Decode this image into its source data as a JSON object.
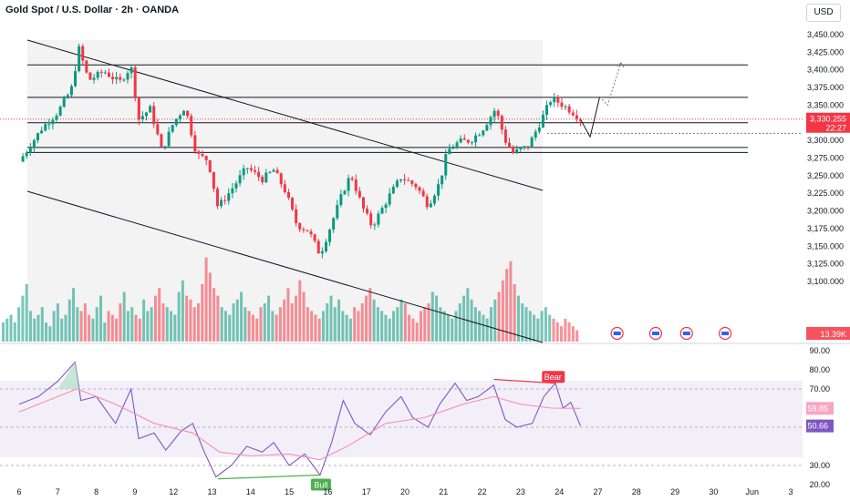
{
  "header": {
    "title": "Gold Spot / U.S. Dollar · 2h · OANDA",
    "currency": "USD"
  },
  "colors": {
    "up": "#089981",
    "down": "#f23645",
    "rsi_line": "#7e57c2",
    "rsi_ma": "#f48fb1",
    "last_price": "#f23645",
    "bull": "#4caf50",
    "bear": "#f23645"
  },
  "chart_data": [
    {
      "type": "candlestick",
      "title": "Gold Spot / U.S. Dollar · 2h · OANDA",
      "xlabel": "",
      "ylabel": "USD",
      "ylim": [
        3125,
        3462
      ],
      "x_ticks": [
        "6",
        "7",
        "8",
        "9",
        "12",
        "13",
        "14",
        "15",
        "16",
        "17",
        "20",
        "21",
        "22",
        "23",
        "24",
        "27",
        "28",
        "29",
        "30",
        "Jun",
        "3"
      ],
      "y_ticks": [
        "3,450.000",
        "3,425.000",
        "3,400.000",
        "3,375.000",
        "3,350.000",
        "3,325.000",
        "3,300.000",
        "3,275.000",
        "3,250.000",
        "3,225.000",
        "3,200.000",
        "3,175.000",
        "3,150.000",
        "3,125.000",
        "3,100.000"
      ],
      "anchors": [
        {
          "x": 0,
          "y": 3270
        },
        {
          "x": 0.6,
          "y": 3318
        },
        {
          "x": 1.0,
          "y": 3340
        },
        {
          "x": 1.35,
          "y": 3372
        },
        {
          "x": 1.55,
          "y": 3430
        },
        {
          "x": 1.8,
          "y": 3385
        },
        {
          "x": 2.2,
          "y": 3398
        },
        {
          "x": 2.6,
          "y": 3382
        },
        {
          "x": 2.9,
          "y": 3405
        },
        {
          "x": 3.1,
          "y": 3330
        },
        {
          "x": 3.4,
          "y": 3345
        },
        {
          "x": 3.7,
          "y": 3285
        },
        {
          "x": 4.0,
          "y": 3325
        },
        {
          "x": 4.3,
          "y": 3348
        },
        {
          "x": 4.6,
          "y": 3280
        },
        {
          "x": 4.9,
          "y": 3272
        },
        {
          "x": 5.15,
          "y": 3205
        },
        {
          "x": 5.5,
          "y": 3230
        },
        {
          "x": 5.9,
          "y": 3262
        },
        {
          "x": 6.3,
          "y": 3245
        },
        {
          "x": 6.6,
          "y": 3258
        },
        {
          "x": 6.9,
          "y": 3228
        },
        {
          "x": 7.2,
          "y": 3180
        },
        {
          "x": 7.5,
          "y": 3172
        },
        {
          "x": 7.8,
          "y": 3138
        },
        {
          "x": 8.05,
          "y": 3175
        },
        {
          "x": 8.4,
          "y": 3228
        },
        {
          "x": 8.6,
          "y": 3252
        },
        {
          "x": 8.9,
          "y": 3205
        },
        {
          "x": 9.15,
          "y": 3178
        },
        {
          "x": 9.6,
          "y": 3222
        },
        {
          "x": 9.9,
          "y": 3248
        },
        {
          "x": 10.3,
          "y": 3235
        },
        {
          "x": 10.6,
          "y": 3208
        },
        {
          "x": 10.9,
          "y": 3240
        },
        {
          "x": 11.1,
          "y": 3285
        },
        {
          "x": 11.4,
          "y": 3298
        },
        {
          "x": 11.7,
          "y": 3300
        },
        {
          "x": 12.0,
          "y": 3315
        },
        {
          "x": 12.35,
          "y": 3345
        },
        {
          "x": 12.6,
          "y": 3300
        },
        {
          "x": 12.8,
          "y": 3282
        },
        {
          "x": 13.2,
          "y": 3292
        },
        {
          "x": 13.5,
          "y": 3325
        },
        {
          "x": 13.8,
          "y": 3360
        },
        {
          "x": 14.1,
          "y": 3350
        },
        {
          "x": 14.4,
          "y": 3338
        },
        {
          "x": 14.55,
          "y": 3330.255
        }
      ],
      "volume": {
        "label": "13.39K",
        "values": [
          5,
          6,
          7,
          5,
          9,
          12,
          15,
          8,
          6,
          7,
          9,
          5,
          4,
          8,
          10,
          6,
          7,
          11,
          14,
          9,
          8,
          10,
          7,
          6,
          9,
          12,
          5,
          8,
          7,
          6,
          10,
          13,
          8,
          9,
          7,
          6,
          11,
          8,
          9,
          12,
          14,
          10,
          9,
          8,
          7,
          13,
          16,
          12,
          11,
          9,
          10,
          15,
          22,
          18,
          14,
          12,
          9,
          8,
          7,
          10,
          11,
          13,
          9,
          8,
          7,
          6,
          9,
          10,
          12,
          8,
          7,
          9,
          11,
          14,
          10,
          12,
          16,
          13,
          9,
          8,
          7,
          6,
          8,
          10,
          12,
          9,
          11,
          8,
          7,
          6,
          9,
          8,
          10,
          12,
          14,
          11,
          9,
          8,
          7,
          6,
          8,
          9,
          11,
          10,
          7,
          6,
          5,
          8,
          9,
          10,
          13,
          12,
          9,
          8,
          7,
          6,
          8,
          10,
          12,
          14,
          11,
          9,
          8,
          7,
          6,
          9,
          11,
          13,
          16,
          19,
          21,
          15,
          12,
          10,
          9,
          8,
          7,
          6,
          8,
          9,
          7,
          6,
          5,
          4,
          6,
          5,
          4,
          3
        ]
      },
      "levels": [
        3407,
        3361,
        3325,
        3290,
        3283
      ],
      "dotted_level": 3310,
      "last_price": {
        "value": "3,330.255",
        "countdown": "22:27"
      },
      "projection": [
        {
          "x": 14.55,
          "y": 3330
        },
        {
          "x": 14.8,
          "y": 3305
        },
        {
          "x": 15.05,
          "y": 3362
        },
        {
          "x": 15.25,
          "y": 3350
        },
        {
          "x": 15.6,
          "y": 3410
        }
      ],
      "events": [
        15.5,
        16.5,
        17.3,
        18.3
      ]
    },
    {
      "type": "line",
      "title": "",
      "ylim": [
        20,
        90
      ],
      "y_ticks": [
        "90.00",
        "80.00",
        "70.00",
        "30.00",
        "20.00"
      ],
      "rsi": [
        {
          "x": 0,
          "y": 62
        },
        {
          "x": 0.5,
          "y": 66
        },
        {
          "x": 1.0,
          "y": 74
        },
        {
          "x": 1.45,
          "y": 84
        },
        {
          "x": 1.6,
          "y": 64
        },
        {
          "x": 2.0,
          "y": 66
        },
        {
          "x": 2.5,
          "y": 52
        },
        {
          "x": 2.9,
          "y": 70
        },
        {
          "x": 3.1,
          "y": 44
        },
        {
          "x": 3.5,
          "y": 47
        },
        {
          "x": 3.8,
          "y": 38
        },
        {
          "x": 4.2,
          "y": 48
        },
        {
          "x": 4.5,
          "y": 52
        },
        {
          "x": 4.8,
          "y": 37
        },
        {
          "x": 5.1,
          "y": 24
        },
        {
          "x": 5.5,
          "y": 30
        },
        {
          "x": 5.9,
          "y": 40
        },
        {
          "x": 6.3,
          "y": 37
        },
        {
          "x": 6.6,
          "y": 42
        },
        {
          "x": 7.0,
          "y": 30
        },
        {
          "x": 7.4,
          "y": 36
        },
        {
          "x": 7.8,
          "y": 25
        },
        {
          "x": 8.1,
          "y": 42
        },
        {
          "x": 8.4,
          "y": 64
        },
        {
          "x": 8.7,
          "y": 52
        },
        {
          "x": 9.1,
          "y": 46
        },
        {
          "x": 9.5,
          "y": 58
        },
        {
          "x": 9.9,
          "y": 66
        },
        {
          "x": 10.2,
          "y": 55
        },
        {
          "x": 10.6,
          "y": 50
        },
        {
          "x": 10.9,
          "y": 62
        },
        {
          "x": 11.3,
          "y": 73
        },
        {
          "x": 11.6,
          "y": 64
        },
        {
          "x": 11.9,
          "y": 66
        },
        {
          "x": 12.3,
          "y": 72
        },
        {
          "x": 12.6,
          "y": 54
        },
        {
          "x": 12.9,
          "y": 50
        },
        {
          "x": 13.3,
          "y": 52
        },
        {
          "x": 13.6,
          "y": 66
        },
        {
          "x": 13.9,
          "y": 73
        },
        {
          "x": 14.1,
          "y": 60
        },
        {
          "x": 14.3,
          "y": 63
        },
        {
          "x": 14.55,
          "y": 50.66
        }
      ],
      "rsi_ma": [
        {
          "x": 0,
          "y": 58
        },
        {
          "x": 1.0,
          "y": 66
        },
        {
          "x": 1.5,
          "y": 70
        },
        {
          "x": 2.5,
          "y": 62
        },
        {
          "x": 3.5,
          "y": 52
        },
        {
          "x": 4.5,
          "y": 47
        },
        {
          "x": 5.2,
          "y": 37
        },
        {
          "x": 6.0,
          "y": 35
        },
        {
          "x": 7.0,
          "y": 36
        },
        {
          "x": 7.8,
          "y": 33
        },
        {
          "x": 8.5,
          "y": 40
        },
        {
          "x": 9.5,
          "y": 52
        },
        {
          "x": 10.5,
          "y": 55
        },
        {
          "x": 11.5,
          "y": 62
        },
        {
          "x": 12.3,
          "y": 66
        },
        {
          "x": 13.0,
          "y": 62
        },
        {
          "x": 13.8,
          "y": 60
        },
        {
          "x": 14.55,
          "y": 59.85
        }
      ],
      "rsi_value": "50.66",
      "rsi_ma_value": "59.85",
      "bull_label": "Bull",
      "bear_label": "Bear"
    }
  ]
}
